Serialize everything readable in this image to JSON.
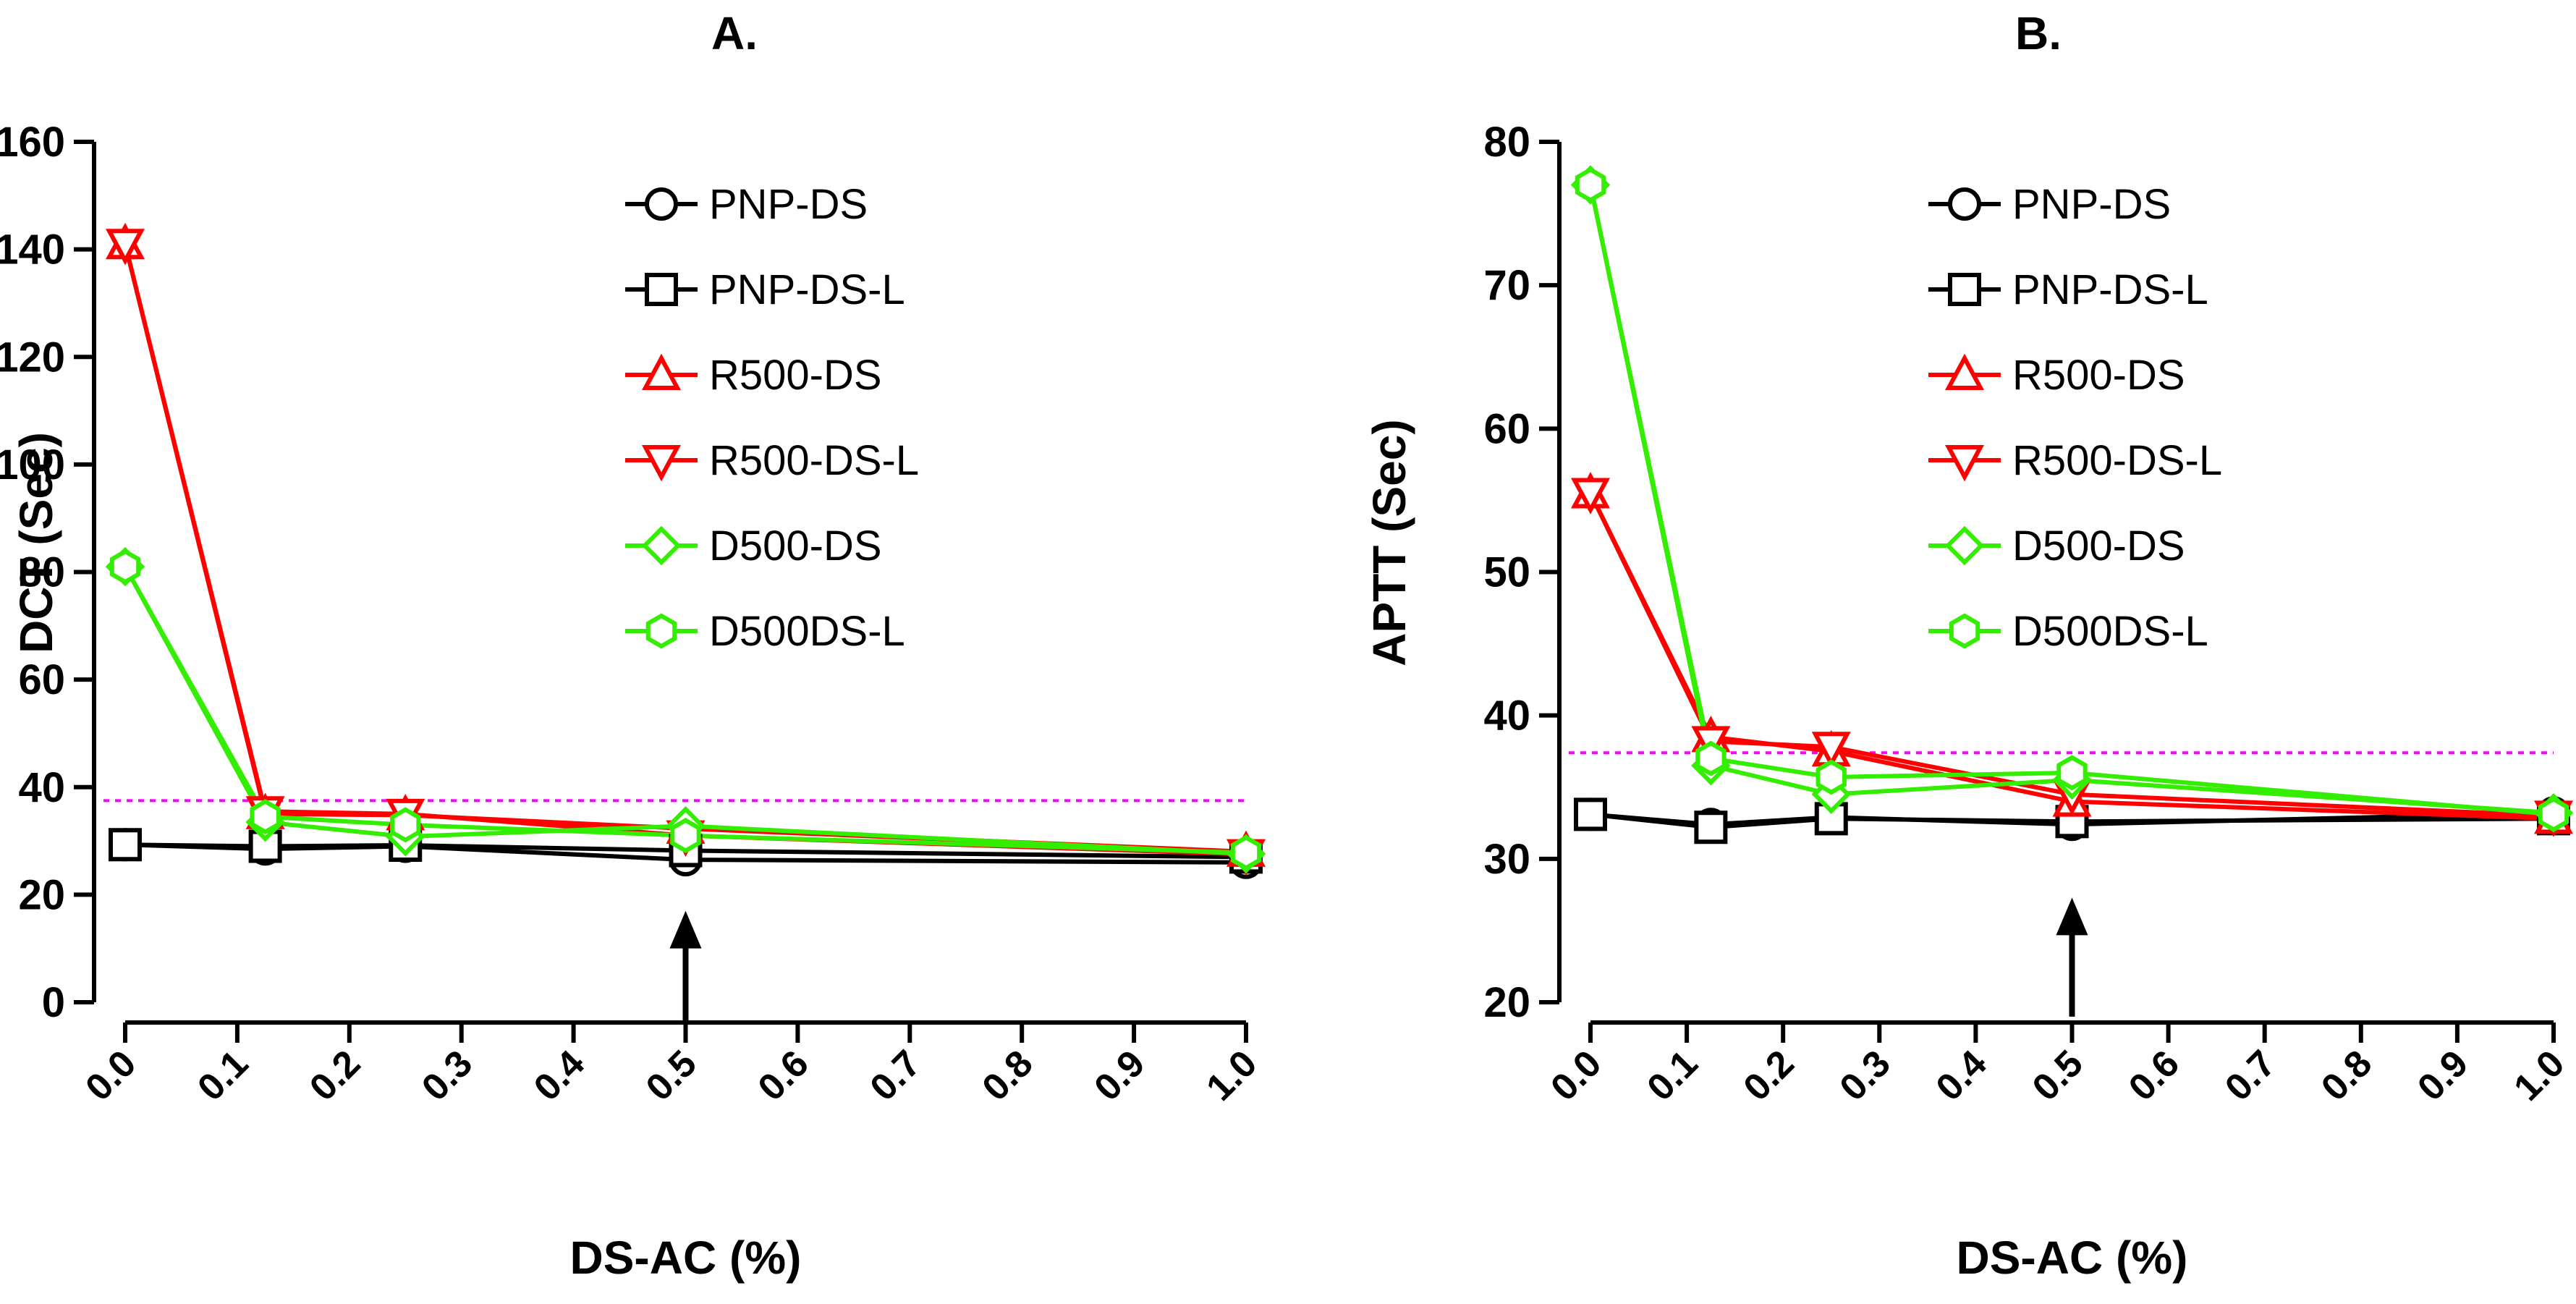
{
  "chart_data": [
    {
      "type": "line",
      "title": "A.",
      "xlabel": "DS-AC (%)",
      "ylabel": "DCT (Sec)",
      "xlim": [
        0,
        1
      ],
      "ylim": [
        0,
        160
      ],
      "x_ticks": [
        "0.0",
        "0.1",
        "0.2",
        "0.3",
        "0.4",
        "0.5",
        "0.6",
        "0.7",
        "0.8",
        "0.9",
        "1.0"
      ],
      "y_ticks": [
        "0",
        "20",
        "40",
        "60",
        "80",
        "100",
        "120",
        "140",
        "160"
      ],
      "x_tick_values": [
        0,
        0.1,
        0.2,
        0.3,
        0.4,
        0.5,
        0.6,
        0.7,
        0.8,
        0.9,
        1.0
      ],
      "y_tick_values": [
        0,
        20,
        40,
        60,
        80,
        100,
        120,
        140,
        160
      ],
      "reference_line": {
        "y": 37.5,
        "color": "#ff00ff",
        "style": "dotted"
      },
      "arrow": {
        "x": 0.5,
        "y_from": -4,
        "y_to": 17
      },
      "legend_position": "top-right",
      "x": [
        0,
        0.125,
        0.25,
        0.5,
        1.0
      ],
      "series": [
        {
          "name": "PNP-DS",
          "color": "#000000",
          "marker": "circle",
          "values": [
            29.3,
            28.5,
            29.0,
            26.5,
            26.0
          ]
        },
        {
          "name": "PNP-DS-L",
          "color": "#000000",
          "marker": "square",
          "values": [
            29.3,
            29.0,
            29.2,
            28.2,
            27.0
          ]
        },
        {
          "name": "R500-DS",
          "color": "#ff0000",
          "marker": "triangle-up",
          "values": [
            141,
            35.0,
            34.8,
            32.3,
            28.0
          ]
        },
        {
          "name": "R500-DS-L",
          "color": "#ff0000",
          "marker": "triangle-down",
          "values": [
            141,
            35.5,
            35.0,
            31.0,
            27.5
          ]
        },
        {
          "name": "D500-DS",
          "color": "#33ee00",
          "marker": "diamond",
          "values": [
            81,
            33.5,
            30.8,
            32.8,
            27.6
          ]
        },
        {
          "name": "D500DS-L",
          "color": "#33ee00",
          "marker": "hexagon",
          "values": [
            81,
            34.5,
            33.0,
            31.0,
            27.8
          ]
        }
      ]
    },
    {
      "type": "line",
      "title": "B.",
      "xlabel": "DS-AC (%)",
      "ylabel": "APTT (Sec)",
      "xlim": [
        0,
        1
      ],
      "ylim": [
        20,
        80
      ],
      "x_ticks": [
        "0.0",
        "0.1",
        "0.2",
        "0.3",
        "0.4",
        "0.5",
        "0.6",
        "0.7",
        "0.8",
        "0.9",
        "1.0"
      ],
      "y_ticks": [
        "20",
        "30",
        "40",
        "50",
        "60",
        "70",
        "80"
      ],
      "x_tick_values": [
        0,
        0.1,
        0.2,
        0.3,
        0.4,
        0.5,
        0.6,
        0.7,
        0.8,
        0.9,
        1.0
      ],
      "y_tick_values": [
        20,
        30,
        40,
        50,
        60,
        70,
        80
      ],
      "reference_line": {
        "y": 37.4,
        "color": "#ff00ff",
        "style": "dotted"
      },
      "arrow": {
        "x": 0.5,
        "y_from": 19,
        "y_to": 27.3
      },
      "legend_position": "top-right",
      "x": [
        0,
        0.125,
        0.25,
        0.5,
        1.0
      ],
      "series": [
        {
          "name": "PNP-DS",
          "color": "#000000",
          "marker": "circle",
          "values": [
            33.1,
            32.4,
            32.9,
            32.4,
            33.2
          ]
        },
        {
          "name": "PNP-DS-L",
          "color": "#000000",
          "marker": "square",
          "values": [
            33.1,
            32.2,
            32.8,
            32.6,
            32.8
          ]
        },
        {
          "name": "R500-DS",
          "color": "#ff0000",
          "marker": "triangle-up",
          "values": [
            55.5,
            38.5,
            37.5,
            34.0,
            32.8
          ]
        },
        {
          "name": "R500-DS-L",
          "color": "#ff0000",
          "marker": "triangle-down",
          "values": [
            55.5,
            38.2,
            37.8,
            34.5,
            33.0
          ]
        },
        {
          "name": "D500-DS",
          "color": "#33ee00",
          "marker": "diamond",
          "values": [
            77,
            36.5,
            34.5,
            35.5,
            33.2
          ]
        },
        {
          "name": "D500DS-L",
          "color": "#33ee00",
          "marker": "hexagon",
          "values": [
            77,
            37.0,
            35.7,
            36.0,
            33.1
          ]
        }
      ]
    }
  ]
}
